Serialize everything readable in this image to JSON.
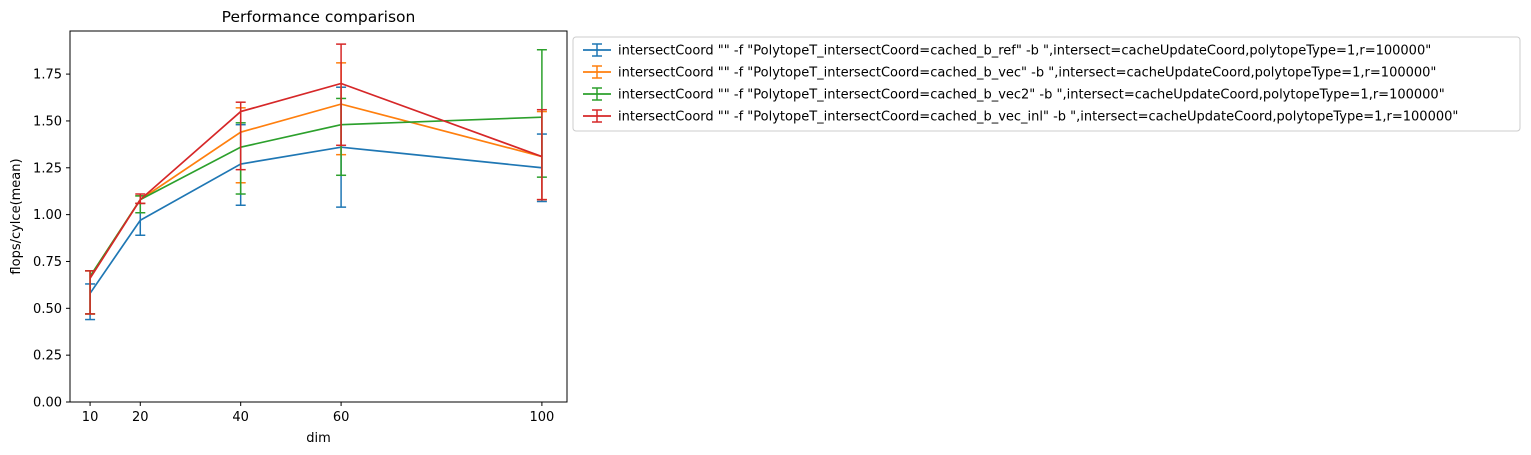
{
  "chart_data": {
    "type": "line",
    "title": "Performance comparison",
    "xlabel": "dim",
    "ylabel": "flops/cylce(mean)",
    "x": [
      10,
      20,
      40,
      60,
      100
    ],
    "xticks": [
      "10",
      "20",
      "40",
      "60",
      "100"
    ],
    "yticks": [
      "0.00",
      "0.25",
      "0.50",
      "0.75",
      "1.00",
      "1.25",
      "1.50",
      "1.75"
    ],
    "ylim": [
      0,
      1.98
    ],
    "xlim": [
      6,
      105
    ],
    "grid": false,
    "legend_position": "outside-right-top",
    "error_bars": true,
    "series": [
      {
        "name": "intersectCoord \"\" -f \"PolytopeT_intersectCoord=cached_b_ref\" -b \",intersect=cacheUpdateCoord,polytopeType=1,r=100000\"",
        "color": "#1f77b4",
        "values": [
          0.58,
          0.97,
          1.27,
          1.36,
          1.25
        ],
        "err_low": [
          0.44,
          0.89,
          1.05,
          1.04,
          1.07
        ],
        "err_high": [
          0.63,
          1.06,
          1.48,
          1.68,
          1.43
        ]
      },
      {
        "name": "intersectCoord \"\" -f \"PolytopeT_intersectCoord=cached_b_vec\" -b \",intersect=cacheUpdateCoord,polytopeType=1,r=100000\"",
        "color": "#ff7f0e",
        "values": [
          0.67,
          1.08,
          1.44,
          1.59,
          1.31
        ],
        "err_low": [
          0.47,
          1.06,
          1.17,
          1.32,
          1.08
        ],
        "err_high": [
          0.7,
          1.1,
          1.57,
          1.81,
          1.55
        ]
      },
      {
        "name": "intersectCoord \"\" -f \"PolytopeT_intersectCoord=cached_b_vec2\" -b \",intersect=cacheUpdateCoord,polytopeType=1,r=100000\"",
        "color": "#2ca02c",
        "values": [
          0.67,
          1.08,
          1.36,
          1.48,
          1.52
        ],
        "err_low": [
          0.47,
          1.01,
          1.11,
          1.21,
          1.2
        ],
        "err_high": [
          0.7,
          1.1,
          1.49,
          1.62,
          1.88
        ]
      },
      {
        "name": "intersectCoord \"\" -f \"PolytopeT_intersectCoord=cached_b_vec_inl\" -b \",intersect=cacheUpdateCoord,polytopeType=1,r=100000\"",
        "color": "#d62728",
        "values": [
          0.66,
          1.08,
          1.55,
          1.7,
          1.31
        ],
        "err_low": [
          0.47,
          1.06,
          1.24,
          1.37,
          1.08
        ],
        "err_high": [
          0.7,
          1.11,
          1.6,
          1.91,
          1.56
        ]
      }
    ]
  }
}
